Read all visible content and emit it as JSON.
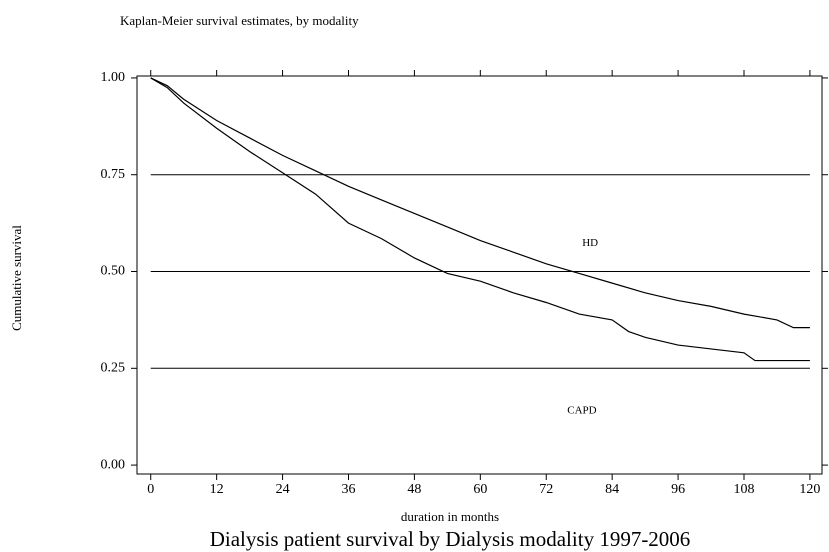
{
  "chart_data": {
    "type": "line",
    "title": "Kaplan-Meier survival estimates, by modality",
    "ylabel": "Cumulative survival",
    "xlabel": "duration in months",
    "caption": "Dialysis patient survival by Dialysis modality 1997-2006",
    "xlim": [
      -2.5,
      122.2
    ],
    "ylim": [
      -0.023,
      1.005
    ],
    "xticks": [
      0,
      12,
      24,
      36,
      48,
      60,
      72,
      84,
      96,
      108,
      120
    ],
    "yticks": [
      {
        "value": 0,
        "label": "0.00"
      },
      {
        "value": 0.25,
        "label": "0.25"
      },
      {
        "value": 0.5,
        "label": "0.50"
      },
      {
        "value": 0.75,
        "label": "0.75"
      },
      {
        "value": 1,
        "label": "1.00"
      }
    ],
    "grid_values": [
      0.25,
      0.5,
      0.75
    ],
    "series": [
      {
        "name": "HD",
        "color": "#000000",
        "label_x": 80,
        "label_y": 0.573,
        "x": [
          0,
          3,
          6,
          12,
          18,
          24,
          30,
          36,
          42,
          48,
          54,
          60,
          66,
          72,
          78,
          84,
          90,
          96,
          102,
          108,
          114,
          117,
          120
        ],
        "values": [
          1.0,
          0.98,
          0.945,
          0.89,
          0.845,
          0.8,
          0.76,
          0.72,
          0.685,
          0.65,
          0.615,
          0.58,
          0.55,
          0.52,
          0.495,
          0.47,
          0.445,
          0.425,
          0.41,
          0.39,
          0.375,
          0.355,
          0.355
        ]
      },
      {
        "name": "CAPD",
        "color": "#000000",
        "label_x": 78.5,
        "label_y": 0.14,
        "x": [
          0,
          3,
          6,
          12,
          18,
          24,
          30,
          36,
          42,
          48,
          54,
          60,
          66,
          72,
          78,
          84,
          87,
          90,
          96,
          102,
          108,
          110,
          120
        ],
        "values": [
          1.0,
          0.975,
          0.935,
          0.87,
          0.81,
          0.755,
          0.7,
          0.625,
          0.585,
          0.535,
          0.495,
          0.475,
          0.445,
          0.42,
          0.39,
          0.375,
          0.345,
          0.33,
          0.31,
          0.3,
          0.29,
          0.27,
          0.27
        ]
      }
    ]
  }
}
